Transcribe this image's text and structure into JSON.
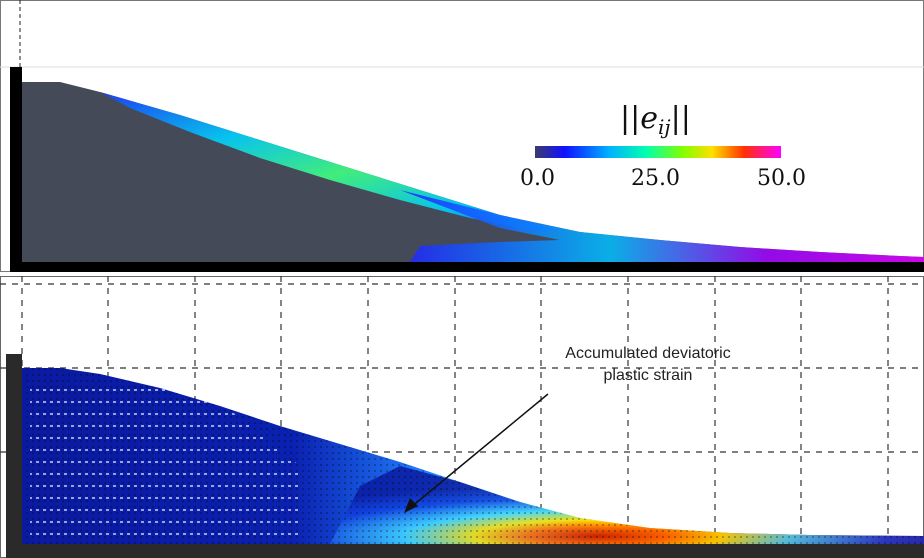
{
  "top_panel": {
    "colorbar": {
      "title": "||e_ij||",
      "ticks": [
        "0.0",
        "25.0",
        "50.0"
      ],
      "range": [
        0,
        50
      ],
      "gradient_colors": [
        "#2b2b7a",
        "#0000ff",
        "#00c8ff",
        "#00ff80",
        "#c8ff00",
        "#ffd000",
        "#ff3000",
        "#ff00ff"
      ]
    },
    "colors": {
      "slope_fill": "#454a58",
      "ground": "#000000",
      "wall": "#000000"
    }
  },
  "bottom_panel": {
    "annotation": {
      "line1": "Accumulated deviatoric",
      "line2": "plastic strain"
    },
    "colors": {
      "grid": "#333333",
      "ground": "#222222",
      "high_strain": "#c00000",
      "mid_strain": "#ffd000",
      "low_strain": "#0a1aa0"
    }
  }
}
